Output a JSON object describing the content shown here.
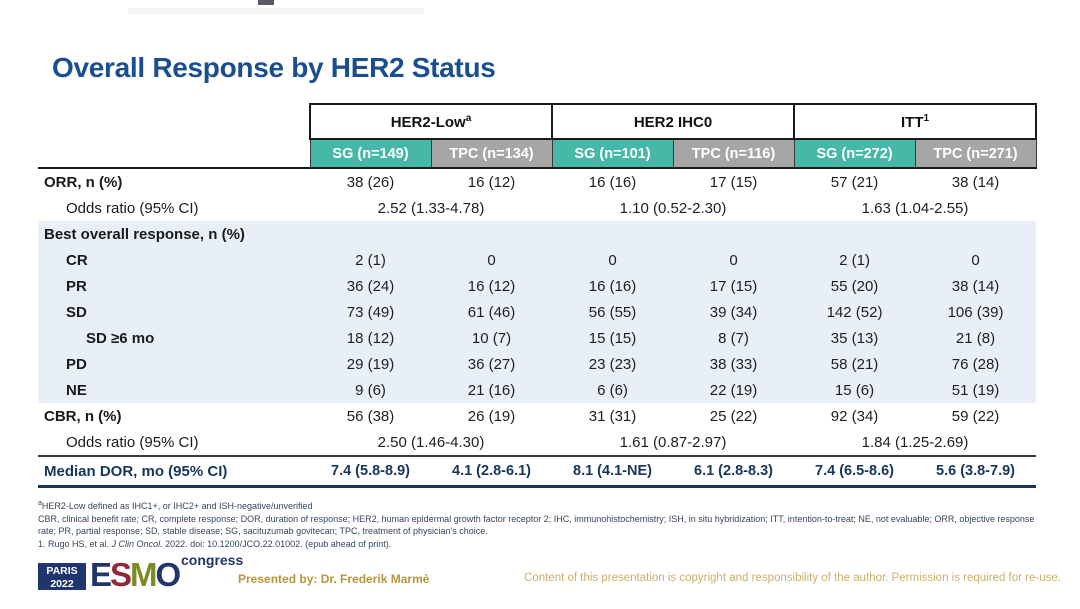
{
  "slide": {
    "title": "Overall Response by HER2 Status"
  },
  "colors": {
    "title_navy": "#1a4e8f",
    "sg_teal": "#45b8a8",
    "tpc_gray": "#a6a6a6",
    "band_blue": "#e9eff7",
    "dor_navy": "#17365d",
    "footer_gold": "#b6953b"
  },
  "table": {
    "groups": [
      {
        "label": "HER2-Low",
        "sup": "a"
      },
      {
        "label": "HER2 IHC0",
        "sup": ""
      },
      {
        "label": "ITT",
        "sup": "1"
      }
    ],
    "arm_headers": [
      "SG (n=149)",
      "TPC (n=134)",
      "SG (n=101)",
      "TPC (n=116)",
      "SG (n=272)",
      "TPC (n=271)"
    ],
    "rows": {
      "orr": {
        "label": "ORR, n (%)",
        "values": [
          "38 (26)",
          "16 (12)",
          "16 (16)",
          "17 (15)",
          "57 (21)",
          "38 (14)"
        ]
      },
      "orr_odds": {
        "label": "Odds ratio (95% CI)",
        "values": [
          "2.52 (1.33-4.78)",
          "1.10 (0.52-2.30)",
          "1.63 (1.04-2.55)"
        ]
      },
      "best": {
        "label": "Best overall response, n (%)"
      },
      "cr": {
        "label": "CR",
        "values": [
          "2 (1)",
          "0",
          "0",
          "0",
          "2 (1)",
          "0"
        ]
      },
      "pr": {
        "label": "PR",
        "values": [
          "36 (24)",
          "16 (12)",
          "16 (16)",
          "17 (15)",
          "55 (20)",
          "38 (14)"
        ]
      },
      "sd": {
        "label": "SD",
        "values": [
          "73 (49)",
          "61 (46)",
          "56 (55)",
          "39 (34)",
          "142 (52)",
          "106 (39)"
        ]
      },
      "sd6": {
        "label": "SD ≥6 mo",
        "values": [
          "18 (12)",
          "10 (7)",
          "15 (15)",
          "8 (7)",
          "35 (13)",
          "21 (8)"
        ]
      },
      "pd": {
        "label": "PD",
        "values": [
          "29 (19)",
          "36 (27)",
          "23 (23)",
          "38 (33)",
          "58 (21)",
          "76 (28)"
        ]
      },
      "ne": {
        "label": "NE",
        "values": [
          "9 (6)",
          "21 (16)",
          "6 (6)",
          "22 (19)",
          "15 (6)",
          "51 (19)"
        ]
      },
      "cbr": {
        "label": "CBR, n (%)",
        "values": [
          "56 (38)",
          "26 (19)",
          "31 (31)",
          "25 (22)",
          "92 (34)",
          "59 (22)"
        ]
      },
      "cbr_odds": {
        "label": "Odds ratio (95% CI)",
        "values": [
          "2.50 (1.46-4.30)",
          "1.61 (0.87-2.97)",
          "1.84 (1.25-2.69)"
        ]
      },
      "dor": {
        "label": "Median DOR, mo (95% CI)",
        "values": [
          "7.4 (5.8-8.9)",
          "4.1 (2.8-6.1)",
          "8.1 (4.1-NE)",
          "6.1 (2.8-8.3)",
          "7.4 (6.5-8.6)",
          "5.6 (3.8-7.9)"
        ]
      }
    }
  },
  "footnotes": {
    "line1_sup": "a",
    "line1": "HER2-Low defined as IHC1+, or IHC2+ and ISH-negative/unverified",
    "line2": "CBR, clinical benefit rate; CR, complete response; DOR, duration of response; HER2, human epidermal growth factor receptor 2; IHC, immunohistochemistry; ISH, in situ hybridization; ITT, intention-to-treat; NE, not evaluable; ORR, objective response rate; PR, partial response; SD, stable disease; SG, sacituzumab govitecan; TPC, treatment of physician's choice.",
    "line3_pre": "1. Rugo HS, et al. ",
    "line3_italic": "J Clin Oncol.",
    "line3_post": " 2022. doi: 10.1200/JCO.22.01002. (epub ahead of print)."
  },
  "footer": {
    "logo": {
      "paris_line1": "PARIS",
      "paris_line2": "2022",
      "letter_e": "E",
      "letter_s": "S",
      "letter_m": "M",
      "letter_o": "O",
      "congress": "congress"
    },
    "presented_by": "Presented by: Dr. Frederik Marmè",
    "copyright": "Content of this presentation is copyright and responsibility of the author. Permission is required for re-use."
  }
}
